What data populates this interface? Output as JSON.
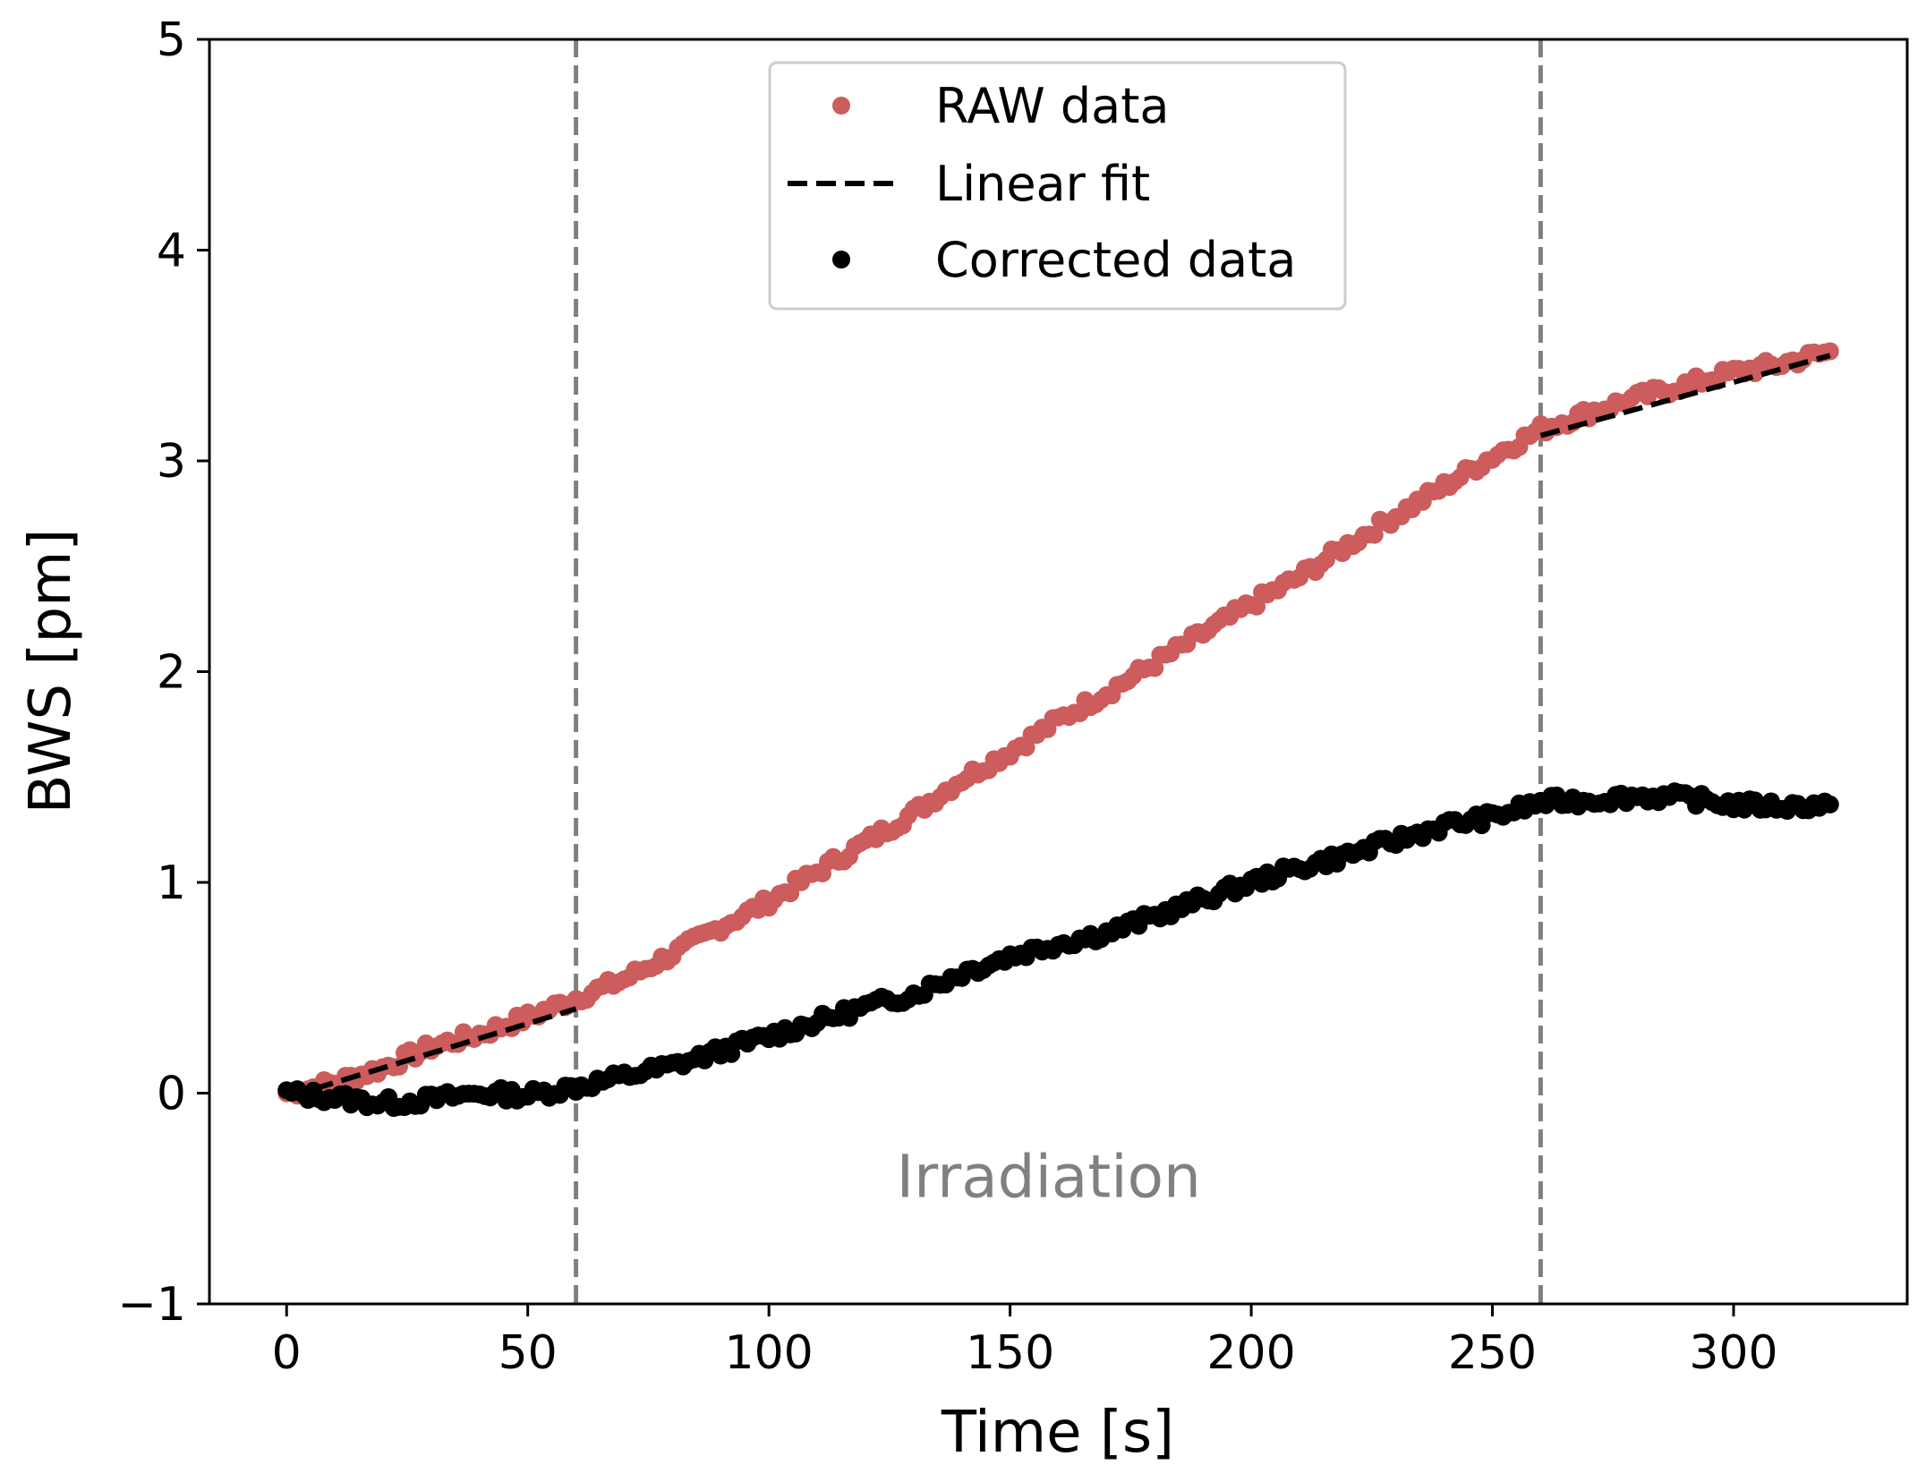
{
  "chart_data": {
    "type": "scatter",
    "title": "",
    "xlabel": "Time [s]",
    "ylabel": "BWS [pm]",
    "xlim": [
      -16,
      336
    ],
    "ylim": [
      -1,
      5
    ],
    "xticks": [
      0,
      50,
      100,
      150,
      200,
      250,
      300
    ],
    "yticks": [
      -1,
      0,
      1,
      2,
      3,
      4,
      5
    ],
    "xtick_labels": [
      "0",
      "50",
      "100",
      "150",
      "200",
      "250",
      "300"
    ],
    "ytick_labels": [
      "−1",
      "0",
      "1",
      "2",
      "3",
      "4",
      "5"
    ],
    "grid": false,
    "legend_position": "top-center",
    "vlines": [
      60,
      260
    ],
    "annotation": {
      "text": "Irradiation",
      "x": 158,
      "y": -0.4
    },
    "series": [
      {
        "name": "RAW data",
        "kind": "markers",
        "color": "#cd5c5c",
        "x": [
          0,
          10,
          20,
          30,
          40,
          50,
          60,
          70,
          80,
          90,
          100,
          110,
          120,
          130,
          140,
          150,
          160,
          170,
          180,
          190,
          200,
          210,
          220,
          230,
          240,
          250,
          260,
          270,
          280,
          290,
          300,
          310,
          320
        ],
        "y": [
          0.0,
          0.05,
          0.12,
          0.22,
          0.28,
          0.36,
          0.45,
          0.54,
          0.66,
          0.79,
          0.91,
          1.05,
          1.19,
          1.33,
          1.49,
          1.62,
          1.77,
          1.9,
          2.04,
          2.18,
          2.32,
          2.45,
          2.6,
          2.74,
          2.88,
          3.02,
          3.15,
          3.23,
          3.3,
          3.36,
          3.42,
          3.46,
          3.52
        ]
      },
      {
        "name": "Linear fit",
        "kind": "dashed-line",
        "color": "#000000",
        "segments": [
          {
            "x": [
              0,
              60
            ],
            "y": [
              -0.02,
              0.4
            ]
          },
          {
            "x": [
              260,
              320
            ],
            "y": [
              3.12,
              3.5
            ]
          }
        ]
      },
      {
        "name": "Corrected data",
        "kind": "markers",
        "color": "#000000",
        "x": [
          0,
          10,
          20,
          30,
          40,
          50,
          60,
          70,
          80,
          90,
          100,
          110,
          120,
          130,
          140,
          150,
          160,
          170,
          180,
          190,
          200,
          210,
          220,
          230,
          240,
          250,
          260,
          270,
          280,
          290,
          300,
          310,
          320
        ],
        "y": [
          0.0,
          -0.02,
          -0.05,
          -0.03,
          0.0,
          -0.01,
          0.03,
          0.08,
          0.13,
          0.2,
          0.27,
          0.34,
          0.41,
          0.47,
          0.57,
          0.65,
          0.71,
          0.76,
          0.84,
          0.92,
          1.0,
          1.07,
          1.13,
          1.2,
          1.27,
          1.31,
          1.38,
          1.39,
          1.41,
          1.4,
          1.37,
          1.36,
          1.37
        ]
      }
    ]
  }
}
